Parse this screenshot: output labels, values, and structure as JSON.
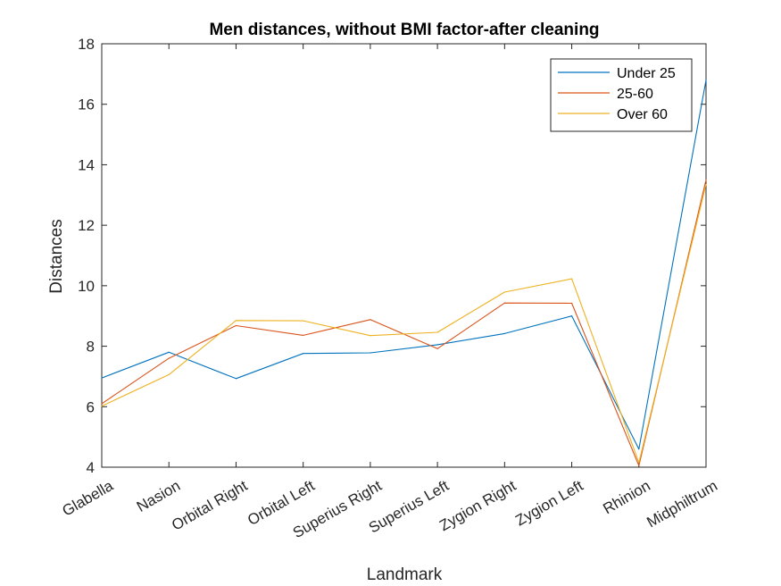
{
  "chart_data": {
    "type": "line",
    "title": "Men distances, without BMI factor-after cleaning",
    "xlabel": "Landmark",
    "ylabel": "Distances",
    "ylim": [
      4,
      18
    ],
    "yticks": [
      4,
      6,
      8,
      10,
      12,
      14,
      16,
      18
    ],
    "categories": [
      "Glabella",
      "Nasion",
      "Orbital Right",
      "Orbital Left",
      "Superius Right",
      "Superius Left",
      "Zygion Right",
      "Zygion Left",
      "Rhinion",
      "Midphiltrum"
    ],
    "grid": false,
    "legend_position": "top-right",
    "series": [
      {
        "name": "Under 25",
        "color": "#0072BD",
        "values": [
          6.95,
          7.8,
          6.93,
          7.76,
          7.78,
          8.05,
          8.42,
          9.0,
          4.6,
          16.8
        ]
      },
      {
        "name": "25-60",
        "color": "#D95319",
        "values": [
          6.1,
          7.6,
          8.68,
          8.36,
          8.88,
          7.92,
          9.43,
          9.42,
          4.05,
          13.5
        ]
      },
      {
        "name": "Over 60",
        "color": "#EDB120",
        "values": [
          6.02,
          7.06,
          8.85,
          8.84,
          8.35,
          8.46,
          9.79,
          10.23,
          4.15,
          13.35
        ]
      }
    ]
  }
}
